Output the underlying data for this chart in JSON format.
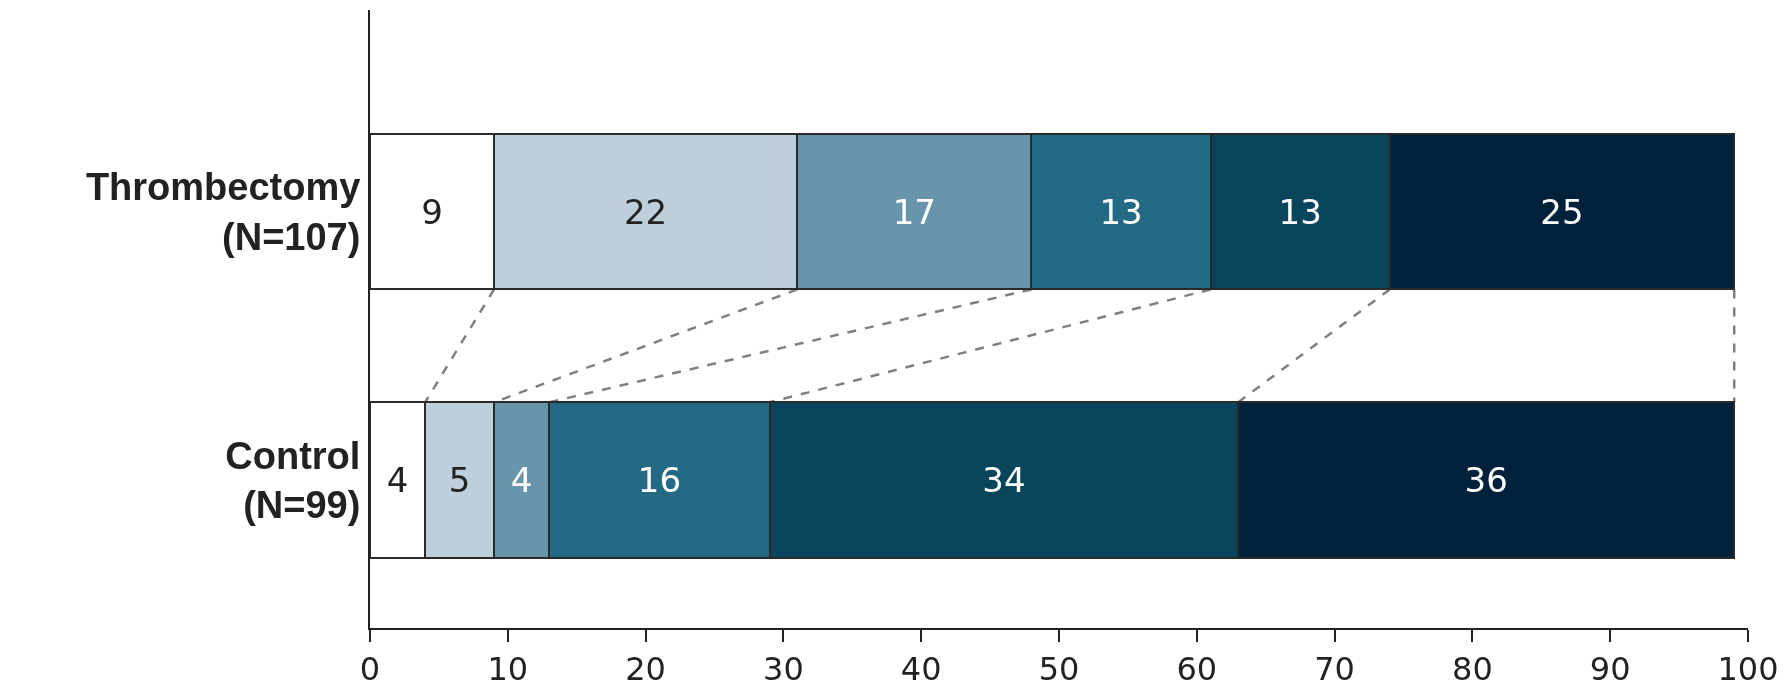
{
  "chart_data": {
    "type": "bar",
    "orientation": "horizontal",
    "stacked": true,
    "data_labels": true,
    "grid": false,
    "categories": [
      "Thrombectomy\n(N=107)",
      "Control\n(N=99)"
    ],
    "xlim": [
      0,
      100
    ],
    "xticks": [
      0,
      10,
      20,
      30,
      40,
      50,
      60,
      70,
      80,
      90,
      100
    ],
    "series": [
      {
        "color": "#ffffff",
        "values": [
          9,
          4
        ]
      },
      {
        "color": "#bccfdb",
        "values": [
          22,
          5
        ]
      },
      {
        "color": "#6895ab",
        "values": [
          17,
          4
        ]
      },
      {
        "color": "#246a84",
        "values": [
          13,
          16
        ]
      },
      {
        "color": "#08445a",
        "values": [
          13,
          34
        ]
      },
      {
        "color": "#00213a",
        "values": [
          25,
          36
        ]
      }
    ]
  }
}
